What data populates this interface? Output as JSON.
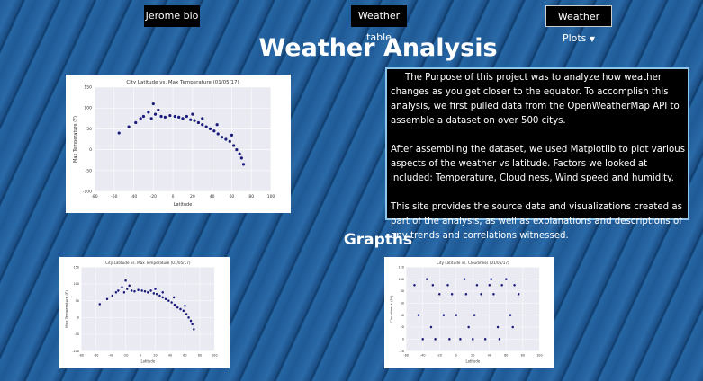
{
  "nav": [
    "Jerome bio",
    "Weather table",
    "Weather Plots"
  ],
  "title": "Weather Analysis",
  "description": [
    "The Purpose of this project was to analyze how weather changes as you get closer to the equator. To accomplish this analysis, we first pulled data from the OpenWeatherMap API to assemble a dataset on over 500 citys.",
    "After assembling the dataset, we used Matplotlib to plot various aspects of the weather vs latitude. Factors we looked at included: Temperature, Cloudiness, Wind speed and humidity.",
    "This site provides the source data and visualizations created as part of the analysis, as well as explanations and descriptions of any trends and correlations witnessed."
  ],
  "graphs_heading": "Grapths",
  "plots": [
    {
      "type": "scatter",
      "title": "City Latitude vs. Max Temperature (01/05/17)",
      "x_label": "Latitude",
      "y_label": "Max Temperature (F)",
      "color": "#1a1a7a",
      "x": [
        -55,
        -45,
        -38,
        -33,
        -30,
        -25,
        -22,
        -18,
        -12,
        -8,
        -3,
        2,
        6,
        10,
        14,
        18,
        22,
        26,
        30,
        34,
        38,
        42,
        46,
        50,
        54,
        58,
        62,
        65,
        68,
        70,
        72,
        60,
        45,
        30,
        20,
        -15,
        -20
      ],
      "y": [
        40,
        55,
        65,
        75,
        80,
        90,
        75,
        85,
        80,
        78,
        82,
        80,
        78,
        75,
        80,
        72,
        70,
        65,
        60,
        55,
        50,
        45,
        38,
        30,
        25,
        20,
        10,
        0,
        -10,
        -20,
        -35,
        35,
        60,
        75,
        85,
        95,
        110
      ],
      "xlim": [
        -80,
        100
      ],
      "ylim": [
        -100,
        150
      ],
      "xticks": [
        -80,
        -60,
        -40,
        -20,
        0,
        20,
        40,
        60,
        80,
        100
      ],
      "yticks": [
        -100,
        -50,
        0,
        50,
        100,
        150
      ]
    },
    {
      "type": "scatter",
      "title": "City Latitude vs. Cloudiness (01/05/17)",
      "x_label": "Latitude",
      "y_label": "Cloudiness (%)",
      "color": "#1a1a7a",
      "x": [
        -50,
        -40,
        -30,
        -20,
        -10,
        0,
        10,
        20,
        30,
        40,
        50,
        60,
        70,
        -45,
        -25,
        -5,
        15,
        35,
        55,
        75,
        -35,
        -15,
        5,
        25,
        45,
        65,
        -28,
        12,
        42,
        68,
        -8,
        22,
        52
      ],
      "y": [
        90,
        0,
        20,
        75,
        90,
        40,
        100,
        0,
        75,
        90,
        20,
        100,
        90,
        40,
        0,
        75,
        20,
        0,
        90,
        75,
        100,
        40,
        0,
        90,
        75,
        40,
        90,
        75,
        100,
        20,
        0,
        40,
        0
      ],
      "xlim": [
        -60,
        100
      ],
      "ylim": [
        -20,
        120
      ],
      "xticks": [
        -60,
        -40,
        -20,
        0,
        20,
        40,
        60,
        80,
        100
      ],
      "yticks": [
        -20,
        0,
        20,
        40,
        60,
        80,
        100,
        120
      ]
    }
  ]
}
